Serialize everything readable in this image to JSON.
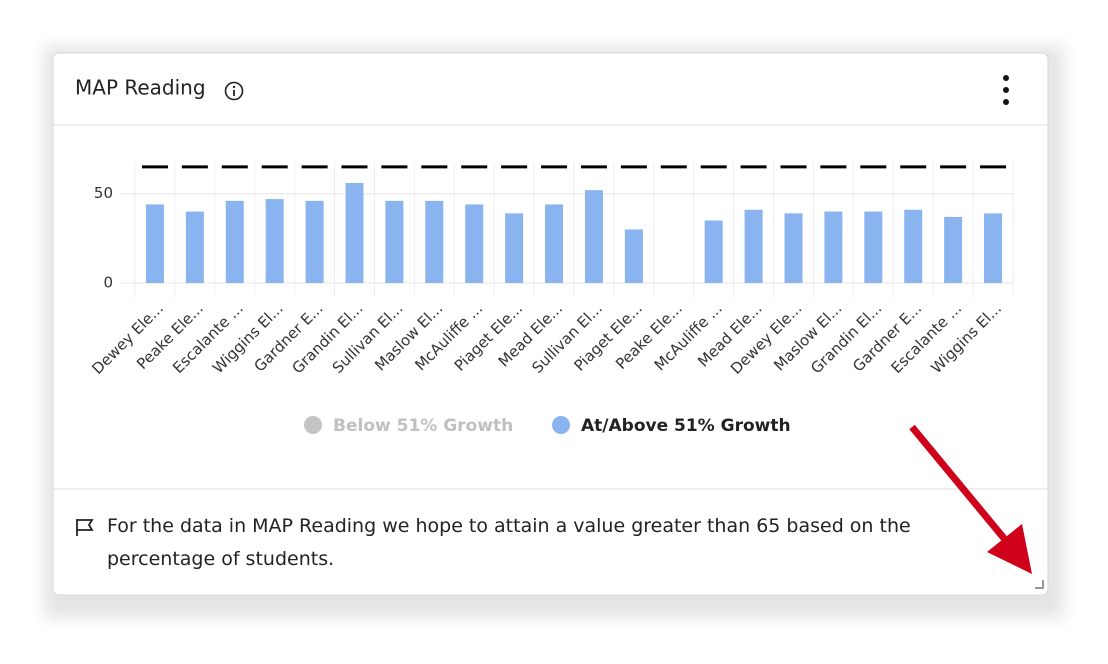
{
  "card": {
    "title": "MAP Reading",
    "note": "For the data in MAP Reading we hope to attain a value greater than 65 based on the percentage of students."
  },
  "chart_data": {
    "type": "bar",
    "categories": [
      "Dewey Ele...",
      "Peake Ele...",
      "Escalante ...",
      "Wiggins El...",
      "Gardner E...",
      "Grandin El...",
      "Sullivan El...",
      "Maslow El...",
      "McAuliffe ...",
      "Piaget Ele...",
      "Mead Ele...",
      "Sullivan El...",
      "Piaget Ele...",
      "Peake Ele...",
      "McAuliffe ...",
      "Mead Ele...",
      "Dewey Ele...",
      "Maslow El...",
      "Grandin El...",
      "Gardner E...",
      "Escalante ...",
      "Wiggins El..."
    ],
    "series": [
      {
        "name": "Below 51% Growth",
        "color": "#c4c4c4",
        "values": [
          null,
          null,
          null,
          null,
          null,
          null,
          null,
          null,
          null,
          null,
          null,
          null,
          null,
          null,
          null,
          null,
          null,
          null,
          null,
          null,
          null,
          null
        ]
      },
      {
        "name": "At/Above 51% Growth",
        "color": "#8ab4f0",
        "values": [
          44,
          40,
          46,
          47,
          46,
          56,
          46,
          46,
          44,
          39,
          44,
          52,
          30,
          null,
          35,
          41,
          39,
          40,
          40,
          41,
          37,
          39
        ]
      }
    ],
    "target": 65,
    "ylim": [
      0,
      70
    ],
    "yticks": [
      0,
      50
    ],
    "grid": true,
    "legend": "bottom"
  }
}
